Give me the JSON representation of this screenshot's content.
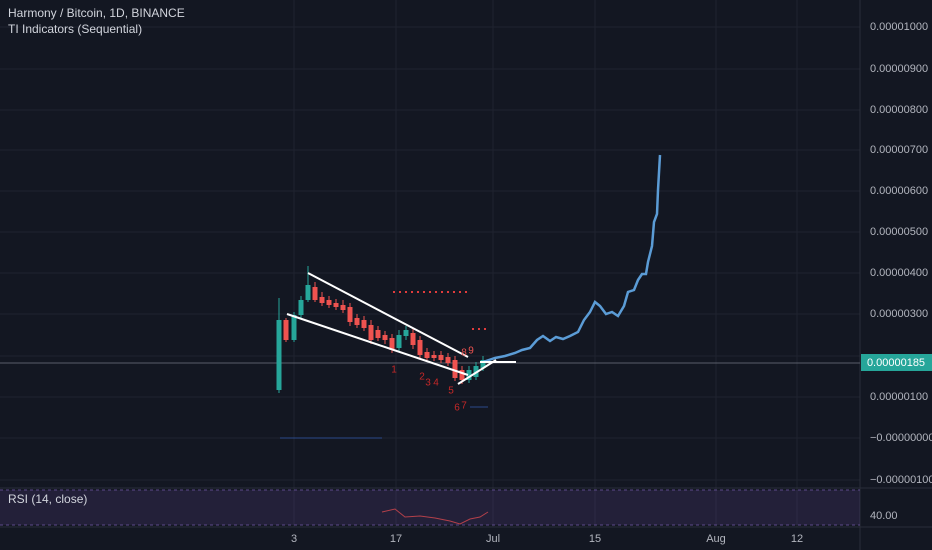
{
  "header": {
    "title": "Harmony / Bitcoin, 1D, BINANCE",
    "subtitle": "TI Indicators (Sequential)"
  },
  "price_axis": {
    "labels": [
      "0.00001000",
      "0.00000900",
      "0.00000800",
      "0.00000700",
      "0.00000600",
      "0.00000500",
      "0.00000400",
      "0.00000300",
      "0.00000100",
      "−0.00000000",
      "−0.00000100"
    ]
  },
  "last_price": "0.00000185",
  "time_axis": {
    "labels": [
      "3",
      "17",
      "Jul",
      "15",
      "Aug",
      "12"
    ]
  },
  "sequential_counts": [
    "1",
    "2",
    "3",
    "4",
    "5",
    "6",
    "7",
    "8",
    "9"
  ],
  "rsi": {
    "label": "RSI (14, close)",
    "value": "40.00"
  }
}
